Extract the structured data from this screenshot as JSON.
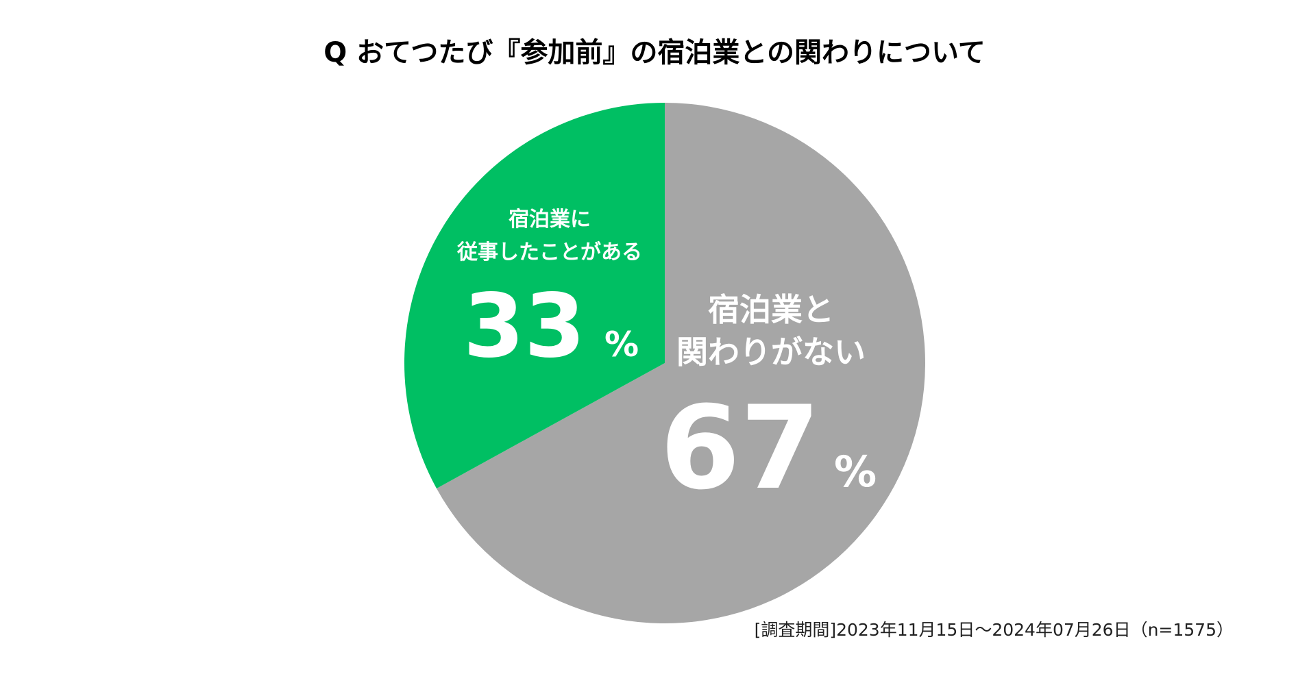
{
  "chart_data": {
    "type": "pie",
    "title": "Q おてつたび『参加前』の宿泊業との関わりについて",
    "slices": [
      {
        "label_lines": [
          "宿泊業と",
          "関わりがない"
        ],
        "value": 67,
        "value_text": "67",
        "unit": "%",
        "color": "#a6a6a6"
      },
      {
        "label_lines": [
          "宿泊業に",
          "従事したことがある"
        ],
        "value": 33,
        "value_text": "33",
        "unit": "%",
        "color": "#00bf63"
      }
    ],
    "start_angle_deg": 0,
    "direction": "clockwise",
    "legend": "none"
  },
  "footnote": "[調査期間]2023年11月15日～2024年07月26日（n=1575）"
}
